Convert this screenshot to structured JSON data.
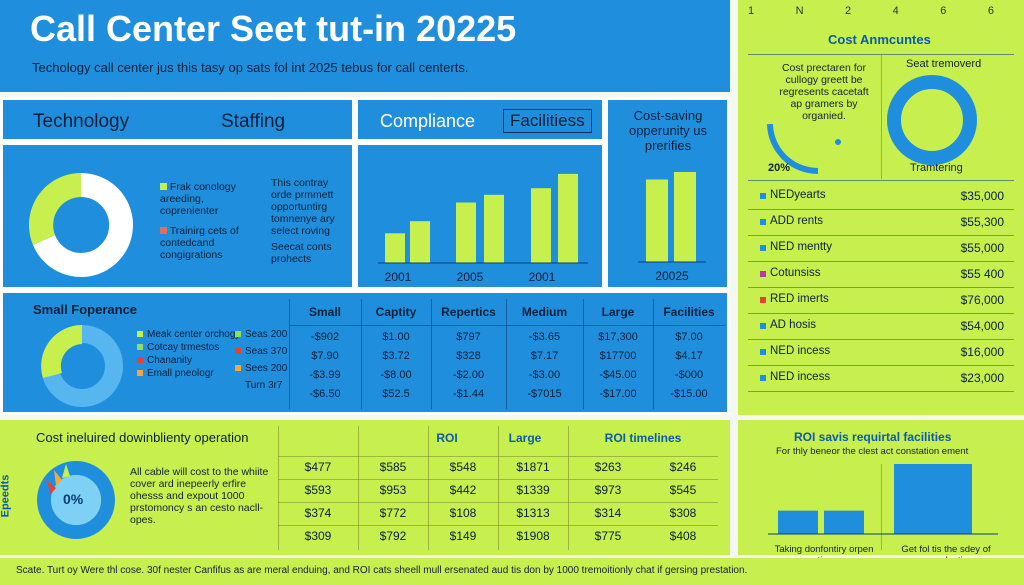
{
  "header": {
    "title": "Call Center Seet tut-in 20225",
    "subtitle": "Techology call center jus this tasy op sats fol int 2025 tebus for call centerts."
  },
  "top_axis_ticks": [
    "1",
    "N",
    "2",
    "4",
    "6",
    "6"
  ],
  "categories_row": {
    "technology": "Technology",
    "staffing": "Staffing",
    "compliance": "Compliance",
    "facilities": "Facilitiess",
    "cost_saving": "Cost-saving opperunity us prerifies"
  },
  "tech_panel": {
    "legend": [
      {
        "label": "Frak conology areeding, coprenienter",
        "color": "#c7ef4d"
      },
      {
        "label": "Trainirg cets of contedcand congigrations",
        "color": "#e86a5a"
      }
    ],
    "notes": [
      "This contray orde prmmett opportuntirg tomnenye ary select roving",
      "Seecat conts prohects"
    ],
    "donut_colors": [
      "#ffffff",
      "#c7ef4d"
    ]
  },
  "bar_chart_1": {
    "type": "bar",
    "categories": [
      "2001",
      "2005",
      "2001"
    ],
    "values": [
      27,
      38,
      55,
      62,
      68,
      81
    ],
    "ylim": [
      0,
      100
    ]
  },
  "bar_chart_2": {
    "type": "bar",
    "categories": [
      "20025"
    ],
    "values": [
      55,
      60
    ],
    "ylim": [
      0,
      100
    ]
  },
  "cost_amounts": {
    "title": "Cost Anmcuntes",
    "desc": "Cost prectaren for cullogy greett be regresents cacetaft ap gramers by organied.",
    "gauge_label": "20%",
    "ring_title": "Seat tremoverd",
    "ring_sub": "Tramtering",
    "rows": [
      {
        "label": "NEDyearts",
        "value": "$35,000",
        "color": "#1f8fdd"
      },
      {
        "label": "ADD rents",
        "value": "$55,300",
        "color": "#1f8fdd"
      },
      {
        "label": "NED mentty",
        "value": "$55,000",
        "color": "#1f8fdd"
      },
      {
        "label": "Cotunsiss",
        "value": "$55 400",
        "color": "#b93aa0"
      },
      {
        "label": "RED imerts",
        "value": "$76,000",
        "color": "#e8413a"
      },
      {
        "label": "AD hosis",
        "value": "$54,000",
        "color": "#1f8fdd"
      },
      {
        "label": "NED incess",
        "value": "$16,000",
        "color": "#1f8fdd"
      },
      {
        "label": "NED incess",
        "value": "$23,000",
        "color": "#1f8fdd"
      }
    ]
  },
  "table1": {
    "title": "Small Foperance",
    "headers": [
      "Small",
      "Captity",
      "Repertics",
      "Medium",
      "Large",
      "Facilities"
    ],
    "legend": [
      {
        "label": "Meak center orchogy",
        "color": "#c7ef4d"
      },
      {
        "label": "Cotcay trmestos",
        "color": "#8ee05a"
      },
      {
        "label": "Chananity",
        "color": "#e8413a"
      },
      {
        "label": "Emall pneologr",
        "color": "#f2a93b"
      }
    ],
    "seas": [
      {
        "label": "Seas 200",
        "color": "#8ee05a"
      },
      {
        "label": "Seas 370",
        "color": "#e8413a"
      },
      {
        "label": "Sees 200",
        "color": "#f2a93b"
      },
      {
        "label": "Turn 3r7",
        "color": "#1f8fdd"
      }
    ],
    "rows": [
      [
        "-$902",
        "$1.00",
        "$797",
        "-$3.65",
        "$17,300",
        "$7.00"
      ],
      [
        "$7.90",
        "$3.72",
        "$328",
        "$7.17",
        "$17700",
        "$4.17"
      ],
      [
        "-$3.99",
        "-$8.00",
        "-$2.00",
        "-$3.00",
        "-$45.00",
        "-$000"
      ],
      [
        "-$6.50",
        "$52.5",
        "-$1.44",
        "-$7015",
        "-$17.00",
        "-$15.00"
      ]
    ]
  },
  "roi_panel": {
    "title": "Cost ineluired dowinblienty operation",
    "side_label": "Epeedts",
    "center": "0%",
    "desc": "All cable will cost to the whiite cover ard inepeerly erfire ohesss and expout 1000 prstomoncy s an cesto nacll-opes.",
    "headers": [
      "ROI",
      "Large",
      "ROI timelines"
    ],
    "rows": [
      [
        "$477",
        "$585",
        "$548",
        "$1871",
        "$263",
        "$246"
      ],
      [
        "$593",
        "$953",
        "$442",
        "$1339",
        "$973",
        "$545"
      ],
      [
        "$374",
        "$772",
        "$108",
        "$1313",
        "$314",
        "$308"
      ],
      [
        "$309",
        "$792",
        "$149",
        "$1908",
        "$775",
        "$408"
      ]
    ]
  },
  "roi_facilities": {
    "title": "ROI savis requirtal facilities",
    "desc": "For thly beneor the clest act constation ement",
    "bars": [
      24,
      24,
      72
    ],
    "label_left": "Taking donfontiry orpen cations.",
    "label_right": "Get fol tis the sdey of ananedcation."
  },
  "footer": "Scate. Turt oy Were thl cose. 30f nester Canfifus as are meral enduing, and ROI cats sheell mull ersenated aud tis don by 1000 tremoitionly chat if gersing prestation."
}
